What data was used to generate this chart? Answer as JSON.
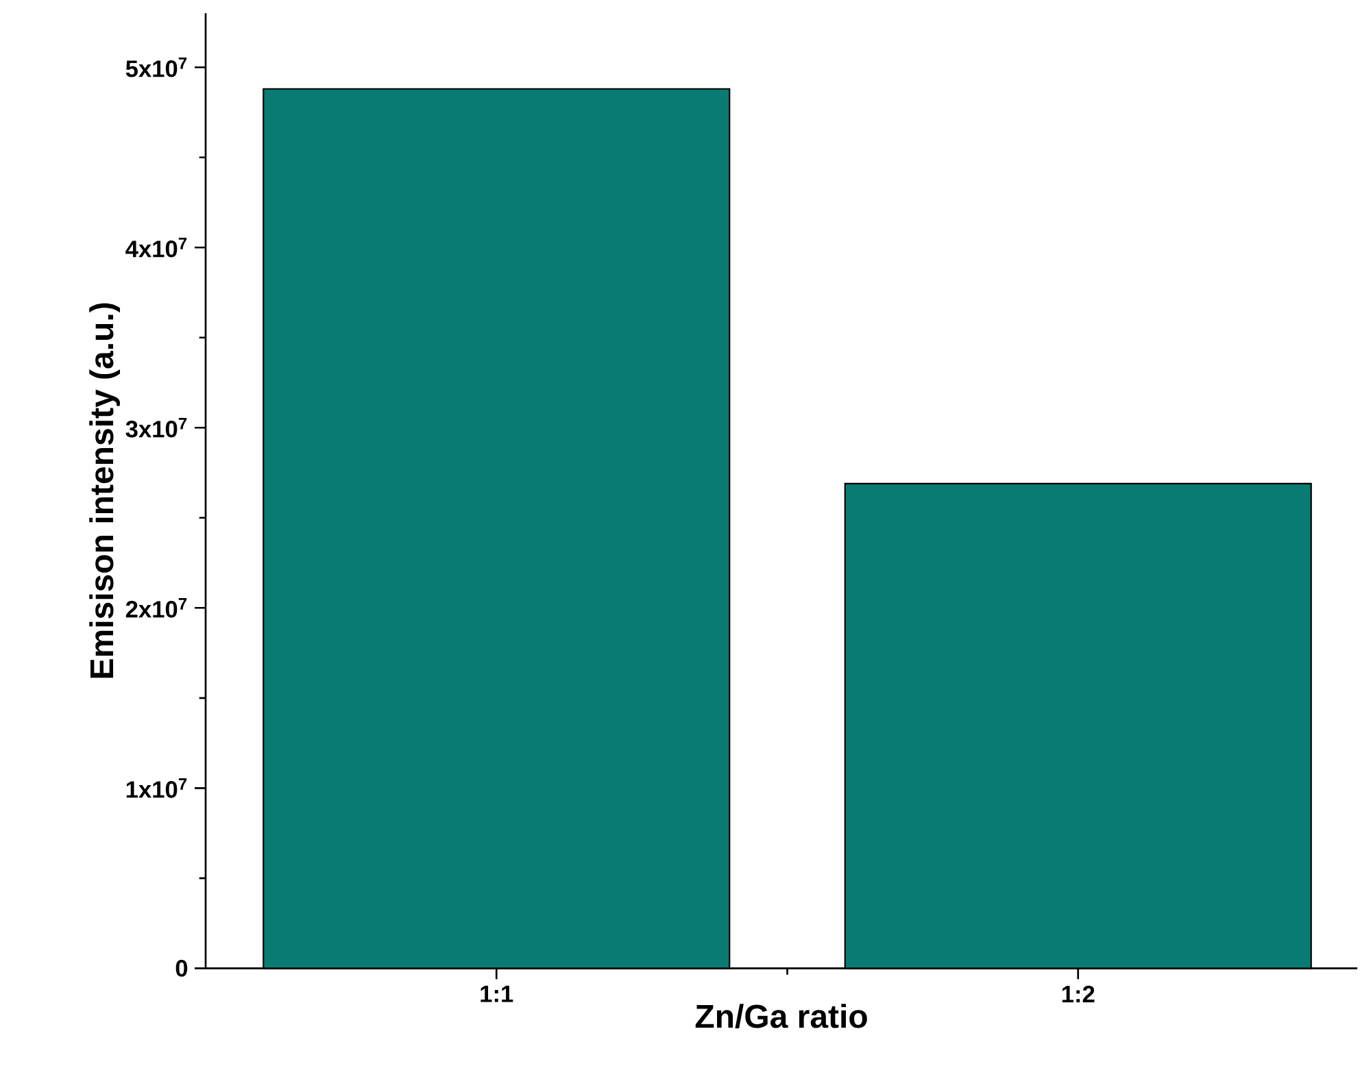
{
  "chart_data": {
    "type": "bar",
    "xlabel": "Zn/Ga ratio",
    "ylabel": "Emisison intensity (a.u.)",
    "categories": [
      "1:1",
      "1:2"
    ],
    "values": [
      48800000,
      26900000
    ],
    "color": "#0a7b72",
    "ylim": [
      0,
      53000000
    ],
    "yticks": [
      0,
      {
        "value": 10000000,
        "label": "1x10$^{7}$"
      },
      {
        "value": 20000000,
        "label": "2x10$^{7}$"
      },
      {
        "value": 30000000,
        "label": "3x10$^{7}$"
      },
      {
        "value": 40000000,
        "label": "4x10$^{7}$"
      },
      {
        "value": 50000000,
        "label": "5x10$^{7}$"
      }
    ],
    "grid": false
  }
}
